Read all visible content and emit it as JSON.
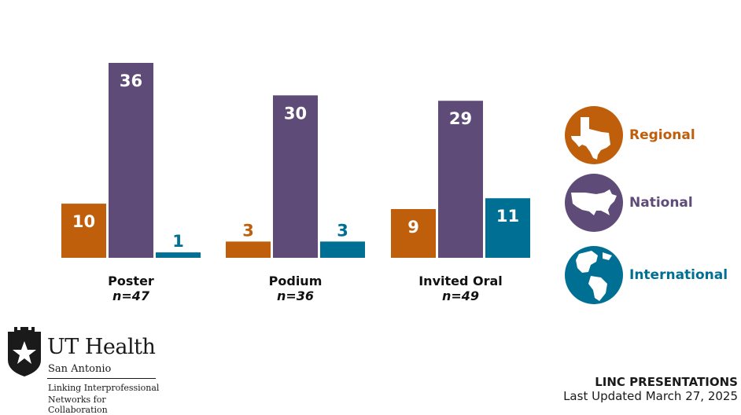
{
  "chart_data": {
    "type": "bar",
    "categories": [
      "Poster",
      "Podium",
      "Invited Oral"
    ],
    "category_n": [
      "n=47",
      "n=36",
      "n=49"
    ],
    "series": [
      {
        "name": "Regional",
        "values": [
          10,
          3,
          9
        ],
        "color": "#bf5f0b"
      },
      {
        "name": "National",
        "values": [
          36,
          30,
          29
        ],
        "color": "#5e4b78"
      },
      {
        "name": "International",
        "values": [
          1,
          3,
          11
        ],
        "color": "#006f94"
      }
    ],
    "ylim": [
      0,
      36
    ],
    "grid": false,
    "legend_position": "right"
  },
  "legend": [
    {
      "label": "Regional",
      "icon": "texas-icon",
      "color": "#bf5f0b"
    },
    {
      "label": "National",
      "icon": "usa-map-icon",
      "color": "#5e4b78"
    },
    {
      "label": "International",
      "icon": "globe-icon",
      "color": "#006f94"
    }
  ],
  "logo": {
    "name": "UT Health",
    "location": "San Antonio",
    "tagline_line1": "Linking Interprofessional",
    "tagline_line2": "Networks for Collaboration"
  },
  "footer": {
    "title": "LINC PRESENTATIONS",
    "updated": "Last Updated March 27, 2025"
  }
}
